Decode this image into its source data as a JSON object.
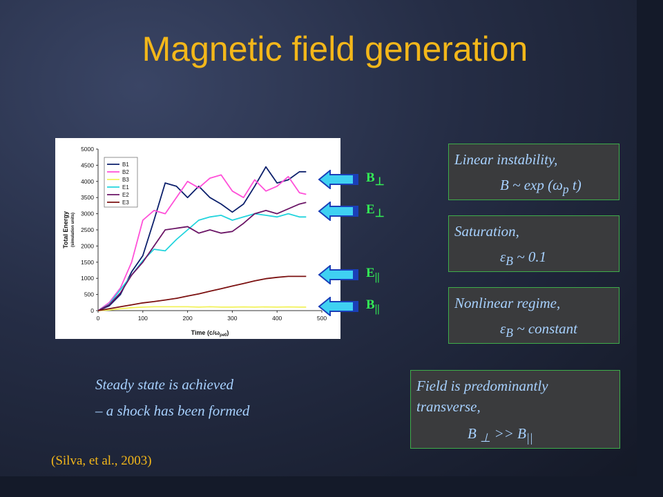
{
  "title": "Magnetic field generation",
  "chart_data": {
    "type": "line",
    "xlabel": "Time (c/ω",
    "xlabel_sub": "pe0",
    "xlabel_close": ")",
    "ylabel": "Total Energy",
    "ylabel_sub": "(simulation units)",
    "xlim": [
      0,
      500
    ],
    "ylim": [
      0,
      5000
    ],
    "xticks": [
      0,
      100,
      200,
      300,
      400,
      500
    ],
    "yticks": [
      0,
      500,
      1000,
      1500,
      2000,
      2500,
      3000,
      3500,
      4000,
      4500,
      5000
    ],
    "legend_position": "top-left",
    "x": [
      0,
      25,
      50,
      75,
      100,
      125,
      150,
      175,
      200,
      225,
      250,
      275,
      300,
      325,
      350,
      375,
      400,
      425,
      450,
      465
    ],
    "series": [
      {
        "name": "B1",
        "color": "#0b1f6b",
        "values": [
          0,
          150,
          500,
          1200,
          1700,
          2800,
          3950,
          3850,
          3500,
          3850,
          3500,
          3300,
          3050,
          3300,
          3850,
          4450,
          3950,
          4050,
          4300,
          4300
        ]
      },
      {
        "name": "B2",
        "color": "#ff4fd8",
        "values": [
          0,
          250,
          700,
          1500,
          2800,
          3100,
          3000,
          3500,
          4000,
          3800,
          4100,
          4200,
          3700,
          3500,
          4050,
          3700,
          3850,
          4150,
          3650,
          3600
        ]
      },
      {
        "name": "B3",
        "color": "#f2f25a",
        "values": [
          0,
          20,
          60,
          90,
          110,
          120,
          120,
          120,
          120,
          110,
          120,
          110,
          110,
          115,
          110,
          115,
          110,
          115,
          110,
          110
        ]
      },
      {
        "name": "E1",
        "color": "#22d4dd",
        "values": [
          0,
          200,
          650,
          1100,
          1550,
          1900,
          1850,
          2200,
          2500,
          2800,
          2900,
          2950,
          2800,
          2900,
          3000,
          2950,
          2900,
          3000,
          2900,
          2900
        ]
      },
      {
        "name": "E2",
        "color": "#6b1566",
        "values": [
          0,
          180,
          550,
          1100,
          1500,
          2000,
          2500,
          2550,
          2600,
          2400,
          2500,
          2400,
          2450,
          2700,
          3000,
          3100,
          3000,
          3150,
          3300,
          3350
        ]
      },
      {
        "name": "E3",
        "color": "#7b1010",
        "values": [
          0,
          60,
          120,
          180,
          240,
          280,
          330,
          380,
          450,
          520,
          600,
          680,
          760,
          840,
          920,
          990,
          1030,
          1060,
          1060,
          1060
        ]
      }
    ]
  },
  "arrows": [
    {
      "label": "B",
      "sub": "⊥"
    },
    {
      "label": "E",
      "sub": "⊥"
    },
    {
      "label": "E",
      "sub": "||"
    },
    {
      "label": "B",
      "sub": "||"
    }
  ],
  "boxes": {
    "linear": {
      "line1": "Linear instability,",
      "line2a": "B ~ exp (",
      "line2b": "ω",
      "line2c": "p",
      "line2d": " t)"
    },
    "saturation": {
      "line1": "Saturation,",
      "line2a": "ε",
      "line2b": "B",
      "line2c": " ~ 0.1"
    },
    "nonlinear": {
      "line1": "Nonlinear regime,",
      "line2a": "ε",
      "line2b": "B",
      "line2c": " ~ constant"
    },
    "transverse": {
      "line1": "Field is predominantly",
      "line1b": "transverse,",
      "line2a": "B ",
      "line2b": "⊥",
      "line2c": " >> B",
      "line2d": "||"
    }
  },
  "caption": {
    "line1": "Steady state is achieved",
    "line2": "– a shock has been formed"
  },
  "citation": "(Silva, et al., 2003)"
}
